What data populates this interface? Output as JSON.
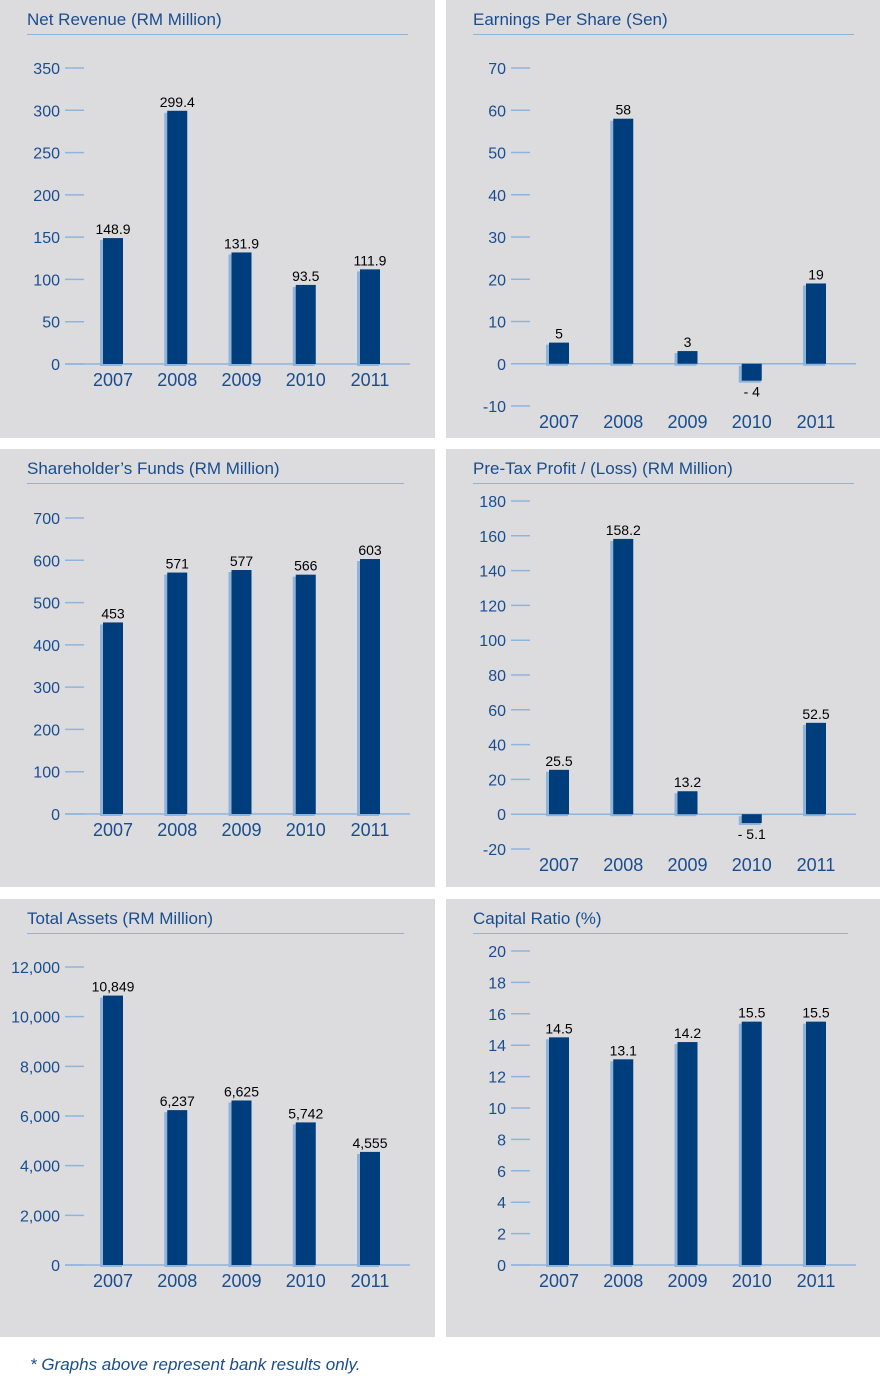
{
  "chart_data": [
    {
      "type": "bar",
      "title": "Net Revenue (RM Million)",
      "categories": [
        "2007",
        "2008",
        "2009",
        "2010",
        "2011"
      ],
      "values": [
        148.9,
        299.4,
        131.9,
        93.5,
        111.9
      ],
      "data_labels": [
        "148.9",
        "299.4",
        "131.9",
        "93.5",
        "111.9"
      ],
      "ylim": [
        0,
        350
      ],
      "yticks": [
        0,
        50,
        100,
        150,
        200,
        250,
        300,
        350
      ],
      "ytick_labels": [
        "0",
        "50",
        "100",
        "150",
        "200",
        "250",
        "300",
        "350"
      ]
    },
    {
      "type": "bar",
      "title": "Earnings Per Share (Sen)",
      "categories": [
        "2007",
        "2008",
        "2009",
        "2010",
        "2011"
      ],
      "values": [
        5,
        58,
        3,
        -4,
        19
      ],
      "data_labels": [
        "5",
        "58",
        "3",
        "- 4",
        "19"
      ],
      "ylim": [
        -10,
        70
      ],
      "yticks": [
        -10,
        0,
        10,
        20,
        30,
        40,
        50,
        60,
        70
      ],
      "ytick_labels": [
        "-10",
        "0",
        "10",
        "20",
        "30",
        "40",
        "50",
        "60",
        "70"
      ]
    },
    {
      "type": "bar",
      "title": "Shareholder’s Funds (RM Million)",
      "categories": [
        "2007",
        "2008",
        "2009",
        "2010",
        "2011"
      ],
      "values": [
        453,
        571,
        577,
        566,
        603
      ],
      "data_labels": [
        "453",
        "571",
        "577",
        "566",
        "603"
      ],
      "ylim": [
        0,
        700
      ],
      "yticks": [
        0,
        100,
        200,
        300,
        400,
        500,
        600,
        700
      ],
      "ytick_labels": [
        "0",
        "100",
        "200",
        "300",
        "400",
        "500",
        "600",
        "700"
      ]
    },
    {
      "type": "bar",
      "title": "Pre-Tax Profit / (Loss) (RM Million)",
      "categories": [
        "2007",
        "2008",
        "2009",
        "2010",
        "2011"
      ],
      "values": [
        25.5,
        158.2,
        13.2,
        -5.1,
        52.5
      ],
      "data_labels": [
        "25.5",
        "158.2",
        "13.2",
        "- 5.1",
        "52.5"
      ],
      "ylim": [
        -20,
        180
      ],
      "yticks": [
        -20,
        0,
        20,
        40,
        60,
        80,
        100,
        120,
        140,
        160,
        180
      ],
      "ytick_labels": [
        "-20",
        "0",
        "20",
        "40",
        "60",
        "80",
        "100",
        "120",
        "140",
        "160",
        "180"
      ]
    },
    {
      "type": "bar",
      "title": "Total Assets (RM Million)",
      "categories": [
        "2007",
        "2008",
        "2009",
        "2010",
        "2011"
      ],
      "values": [
        10849,
        6237,
        6625,
        5742,
        4555
      ],
      "data_labels": [
        "10,849",
        "6,237",
        "6,625",
        "5,742",
        "4,555"
      ],
      "ylim": [
        0,
        12000
      ],
      "yticks": [
        0,
        2000,
        4000,
        6000,
        8000,
        10000,
        12000
      ],
      "ytick_labels": [
        "0",
        "2,000",
        "4,000",
        "6,000",
        "8,000",
        "10,000",
        "12,000"
      ]
    },
    {
      "type": "bar",
      "title": "Capital Ratio (%)",
      "categories": [
        "2007",
        "2008",
        "2009",
        "2010",
        "2011"
      ],
      "values": [
        14.5,
        13.1,
        14.2,
        15.5,
        15.5
      ],
      "data_labels": [
        "14.5",
        "13.1",
        "14.2",
        "15.5",
        "15.5"
      ],
      "ylim": [
        0,
        20
      ],
      "yticks": [
        0,
        2,
        4,
        6,
        8,
        10,
        12,
        14,
        16,
        18,
        20
      ],
      "ytick_labels": [
        "0",
        "2",
        "4",
        "6",
        "8",
        "10",
        "12",
        "14",
        "16",
        "18",
        "20"
      ]
    }
  ],
  "colors": {
    "bar": "#003d7c",
    "bar_side": "#8fb4dc",
    "axis": "#8fb4dc",
    "text": "#1a4d8f",
    "panel": "#dcdcde"
  },
  "footer": "* Graphs above represent bank results only."
}
